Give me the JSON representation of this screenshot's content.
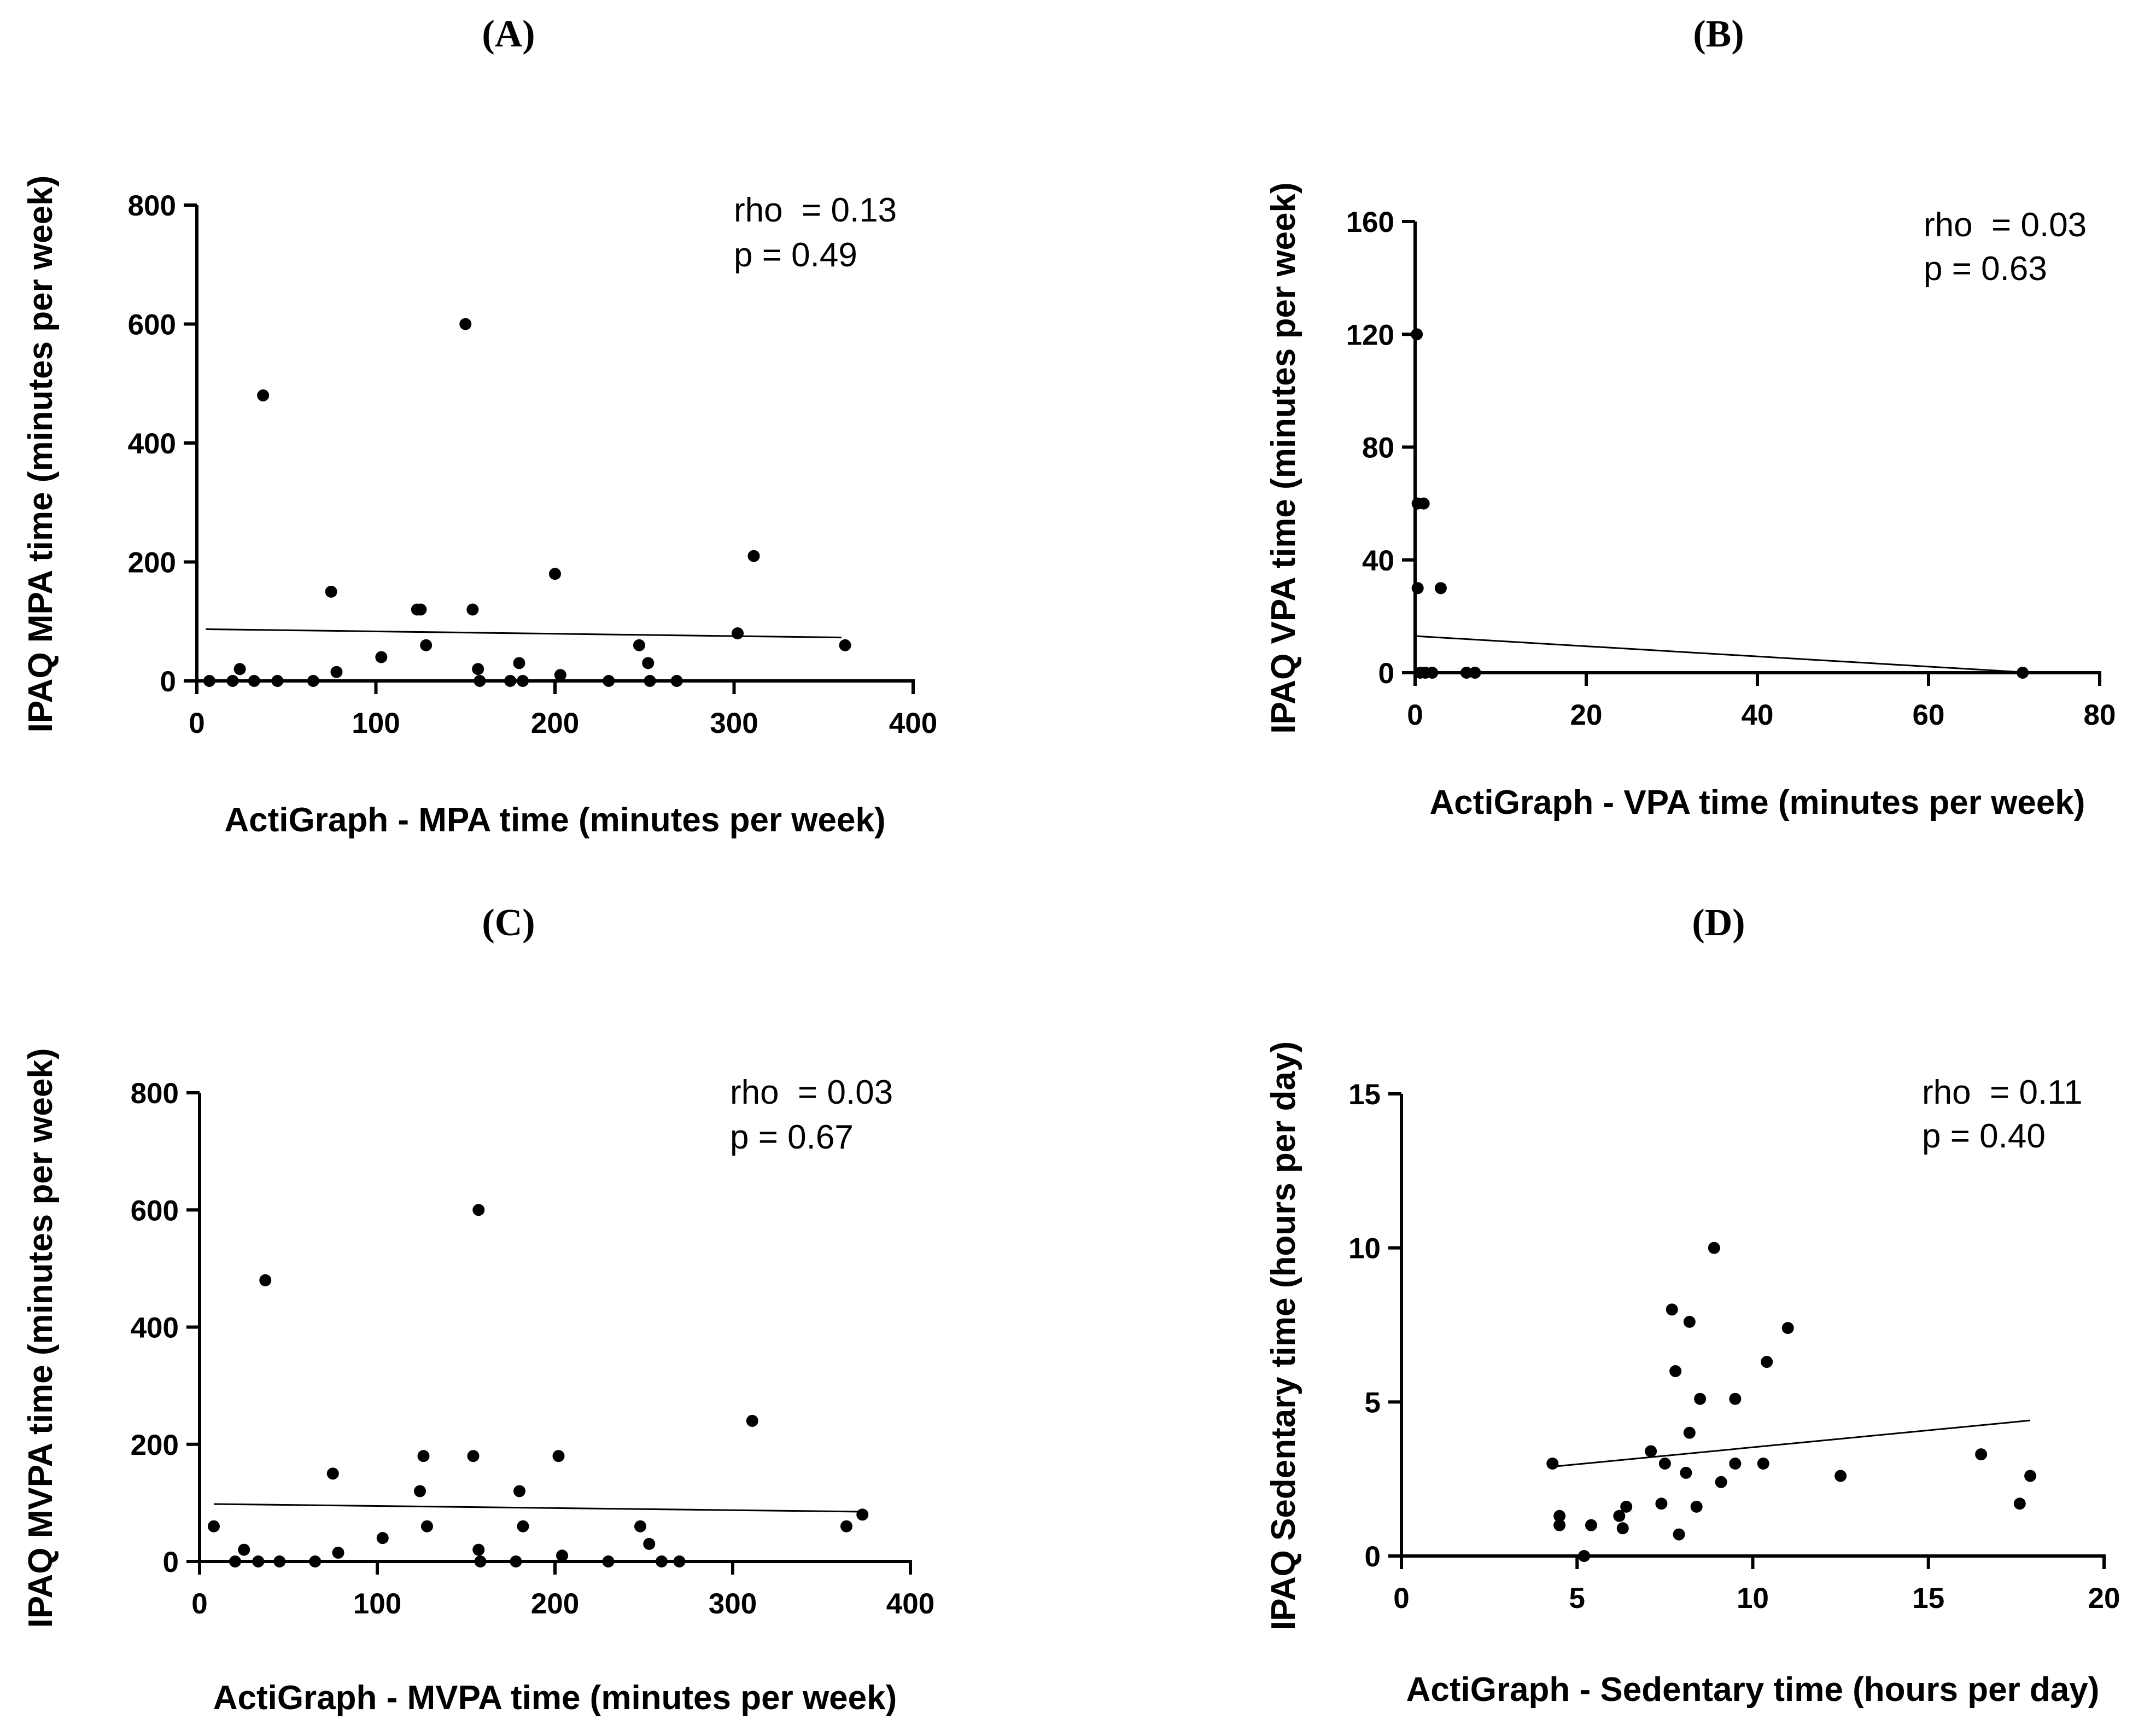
{
  "chart_data": [
    {
      "type": "scatter",
      "panel_label": "(A)",
      "xlabel": "ActiGraph - MPA time (minutes per week)",
      "ylabel": "IPAQ MPA time (minutes per week)",
      "xlim": [
        0,
        400
      ],
      "ylim": [
        0,
        800
      ],
      "xticks": [
        0,
        100,
        200,
        300,
        400
      ],
      "yticks": [
        0,
        200,
        400,
        600,
        800
      ],
      "rho_text": "rho  = 0.13",
      "p_text": "p = 0.49",
      "fit_line": {
        "x": [
          5,
          360
        ],
        "y": [
          87,
          73
        ]
      },
      "points": [
        [
          7,
          0
        ],
        [
          20,
          0
        ],
        [
          24,
          20
        ],
        [
          32,
          0
        ],
        [
          37,
          480
        ],
        [
          45,
          0
        ],
        [
          65,
          0
        ],
        [
          75,
          150
        ],
        [
          78,
          15
        ],
        [
          103,
          40
        ],
        [
          123,
          120
        ],
        [
          125,
          120
        ],
        [
          128,
          60
        ],
        [
          150,
          600
        ],
        [
          154,
          120
        ],
        [
          157,
          20
        ],
        [
          158,
          0
        ],
        [
          175,
          0
        ],
        [
          180,
          30
        ],
        [
          182,
          0
        ],
        [
          200,
          180
        ],
        [
          203,
          10
        ],
        [
          230,
          0
        ],
        [
          247,
          60
        ],
        [
          252,
          30
        ],
        [
          253,
          0
        ],
        [
          268,
          0
        ],
        [
          302,
          80
        ],
        [
          311,
          210
        ],
        [
          362,
          60
        ]
      ]
    },
    {
      "type": "scatter",
      "panel_label": "(B)",
      "xlabel": "ActiGraph - VPA time (minutes per week)",
      "ylabel": "IPAQ VPA time (minutes per week)",
      "xlim": [
        0,
        80
      ],
      "ylim": [
        0,
        160
      ],
      "xticks": [
        0,
        20,
        40,
        60,
        80
      ],
      "yticks": [
        0,
        40,
        80,
        120,
        160
      ],
      "rho_text": "rho  = 0.03",
      "p_text": "p = 0.63",
      "fit_line": {
        "x": [
          0,
          72
        ],
        "y": [
          13,
          0
        ]
      },
      "points": [
        [
          0.2,
          120
        ],
        [
          0.3,
          60
        ],
        [
          0.3,
          30
        ],
        [
          0.6,
          0
        ],
        [
          1.0,
          60
        ],
        [
          1.2,
          0
        ],
        [
          2.0,
          0
        ],
        [
          3.0,
          30
        ],
        [
          6.0,
          0
        ],
        [
          7.0,
          0
        ],
        [
          71,
          0
        ]
      ]
    },
    {
      "type": "scatter",
      "panel_label": "(C)",
      "xlabel": "ActiGraph - MVPA time (minutes per week)",
      "ylabel": "IPAQ MVPA time (minutes per week)",
      "xlim": [
        0,
        400
      ],
      "ylim": [
        0,
        800
      ],
      "xticks": [
        0,
        100,
        200,
        300,
        400
      ],
      "yticks": [
        0,
        200,
        400,
        600,
        800
      ],
      "rho_text": "rho  = 0.03",
      "p_text": "p = 0.67",
      "fit_line": {
        "x": [
          8,
          372
        ],
        "y": [
          98,
          85
        ]
      },
      "points": [
        [
          8,
          60
        ],
        [
          20,
          0
        ],
        [
          25,
          20
        ],
        [
          33,
          0
        ],
        [
          37,
          480
        ],
        [
          45,
          0
        ],
        [
          65,
          0
        ],
        [
          75,
          150
        ],
        [
          78,
          15
        ],
        [
          103,
          40
        ],
        [
          124,
          120
        ],
        [
          126,
          180
        ],
        [
          128,
          60
        ],
        [
          154,
          180
        ],
        [
          157,
          600
        ],
        [
          157,
          20
        ],
        [
          158,
          0
        ],
        [
          178,
          0
        ],
        [
          180,
          120
        ],
        [
          182,
          60
        ],
        [
          202,
          180
        ],
        [
          204,
          10
        ],
        [
          230,
          0
        ],
        [
          248,
          60
        ],
        [
          253,
          30
        ],
        [
          260,
          0
        ],
        [
          270,
          0
        ],
        [
          311,
          240
        ],
        [
          364,
          60
        ],
        [
          373,
          80
        ]
      ]
    },
    {
      "type": "scatter",
      "panel_label": "(D)",
      "xlabel": "ActiGraph - Sedentary time (hours per day)",
      "ylabel": "IPAQ Sedentary time (hours per day)",
      "xlim": [
        0,
        20
      ],
      "ylim": [
        0,
        15
      ],
      "xticks": [
        0,
        5,
        10,
        15,
        20
      ],
      "yticks": [
        0,
        5,
        10,
        15
      ],
      "rho_text": "rho  = 0.11",
      "p_text": "p = 0.40",
      "fit_line": {
        "x": [
          4.3,
          17.9
        ],
        "y": [
          2.9,
          4.4
        ]
      },
      "points": [
        [
          4.3,
          3.0
        ],
        [
          4.5,
          1.3
        ],
        [
          4.5,
          1.0
        ],
        [
          5.2,
          0.0
        ],
        [
          5.4,
          1.0
        ],
        [
          6.2,
          1.3
        ],
        [
          6.3,
          0.9
        ],
        [
          6.4,
          1.6
        ],
        [
          7.1,
          3.4
        ],
        [
          7.4,
          1.7
        ],
        [
          7.5,
          3.0
        ],
        [
          7.7,
          8.0
        ],
        [
          7.8,
          6.0
        ],
        [
          7.9,
          0.7
        ],
        [
          8.1,
          2.7
        ],
        [
          8.2,
          4.0
        ],
        [
          8.2,
          7.6
        ],
        [
          8.4,
          1.6
        ],
        [
          8.5,
          5.1
        ],
        [
          8.9,
          10.0
        ],
        [
          9.1,
          2.4
        ],
        [
          9.5,
          5.1
        ],
        [
          9.5,
          3.0
        ],
        [
          10.3,
          3.0
        ],
        [
          10.4,
          6.3
        ],
        [
          11.0,
          7.4
        ],
        [
          12.5,
          2.6
        ],
        [
          16.5,
          3.3
        ],
        [
          17.6,
          1.7
        ],
        [
          17.9,
          2.6
        ]
      ]
    }
  ]
}
